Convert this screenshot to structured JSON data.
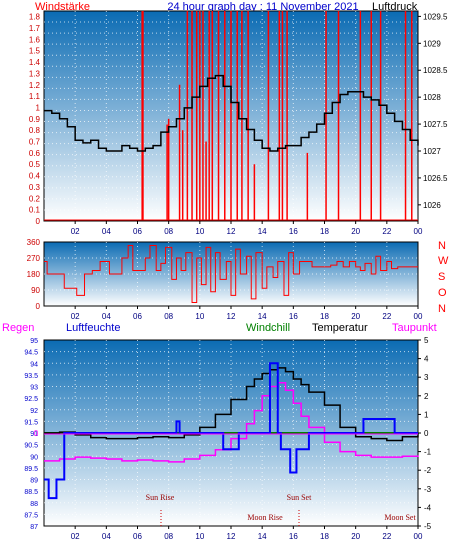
{
  "header": {
    "left_title": "Windstärke",
    "center_title": "24 hour graph day : 11 November 2021",
    "right_title": "Luftdruck"
  },
  "colors": {
    "wind": "#ff0000",
    "pressure": "#000000",
    "direction": "#ff0000",
    "humidity": "#0000ff",
    "windchill": "#008000",
    "temperature": "#000000",
    "dewpoint": "#ff00ff",
    "gradient_top": "#0b6bb3",
    "gradient_bottom": "#ffffff"
  },
  "direction_labels": [
    "N",
    "W",
    "S",
    "O",
    "N"
  ],
  "bottom_legend": {
    "rain": "Regen",
    "humidity": "Luftfeuchte",
    "windchill": "Windchill",
    "temperature": "Temperatur",
    "dewpoint": "Taupunkt"
  },
  "astro": {
    "sun_rise": "Sun Rise",
    "sun_set": "Sun Set",
    "moon_rise": "Moon Rise",
    "moon_set": "Moon Set"
  },
  "chart_data": [
    {
      "type": "line",
      "x_ticks": [
        "02",
        "04",
        "06",
        "08",
        "10",
        "12",
        "14",
        "16",
        "18",
        "20",
        "22",
        "00"
      ],
      "left_axis": {
        "label": "Windstärke",
        "ticks": [
          "0",
          "0.1",
          "0.2",
          "0.3",
          "0.4",
          "0.5",
          "0.6",
          "0.7",
          "0.8",
          "0.9",
          "1",
          "1.1",
          "1.2",
          "1.3",
          "1.4",
          "1.5",
          "1.6",
          "1.7",
          "1.8"
        ],
        "ylim": [
          0,
          1.85
        ]
      },
      "right_axis": {
        "label": "Luftdruck",
        "ticks": [
          "1026",
          "1026.5",
          "1027",
          "1027.5",
          "1028",
          "1028.5",
          "1029",
          "1029.5"
        ],
        "ylim": [
          1025.7,
          1029.6
        ]
      },
      "series": [
        {
          "name": "Luftdruck",
          "axis": "right",
          "x": [
            0,
            0.5,
            1,
            1.5,
            2,
            2.5,
            3,
            3.5,
            4,
            4.5,
            5,
            5.5,
            6,
            6.5,
            7,
            7.5,
            8,
            8.5,
            9,
            9.5,
            10,
            10.5,
            11,
            11.5,
            12,
            12.5,
            13,
            13.5,
            14,
            14.5,
            15,
            15.5,
            16,
            16.5,
            17,
            17.5,
            18,
            18.5,
            19,
            19.5,
            20,
            20.5,
            21,
            21.5,
            22,
            22.5,
            23,
            23.5,
            24
          ],
          "values": [
            1027.75,
            1027.7,
            1027.6,
            1027.45,
            1027.2,
            1027.15,
            1027.2,
            1027.05,
            1027.0,
            1027.0,
            1027.1,
            1027.05,
            1027.0,
            1027.05,
            1027.1,
            1027.35,
            1027.45,
            1027.6,
            1027.8,
            1028.0,
            1028.2,
            1028.35,
            1028.4,
            1028.2,
            1027.9,
            1027.6,
            1027.4,
            1027.2,
            1027.05,
            1027.0,
            1027.05,
            1027.1,
            1027.1,
            1027.25,
            1027.35,
            1027.5,
            1027.7,
            1027.9,
            1028.05,
            1028.1,
            1028.1,
            1028.0,
            1027.95,
            1027.85,
            1027.7,
            1027.55,
            1027.4,
            1027.2,
            1027.1
          ]
        },
        {
          "name": "Windstärke",
          "axis": "left",
          "x": [
            6.3,
            6.35,
            7.9,
            8.0,
            8.7,
            8.9,
            9.2,
            9.5,
            9.8,
            10.0,
            10.2,
            10.4,
            10.6,
            10.8,
            11.2,
            11.6,
            12.0,
            12.4,
            12.7,
            13.1,
            13.5,
            14.4,
            15.1,
            15.3,
            15.6,
            16.9,
            18.1,
            18.9,
            20.3,
            21.0,
            21.6,
            23.2,
            23.6
          ],
          "values": [
            1.85,
            1.85,
            0.85,
            0.9,
            1.2,
            0.8,
            1.85,
            1.85,
            1.85,
            1.85,
            1.85,
            0.7,
            1.85,
            1.85,
            1.85,
            1.85,
            1.85,
            1.85,
            1.85,
            1.85,
            0.5,
            1.85,
            1.85,
            1.85,
            1.85,
            0.6,
            1.85,
            1.85,
            1.85,
            1.85,
            1.85,
            1.85,
            1.85
          ]
        }
      ]
    },
    {
      "type": "line",
      "x_ticks": [
        "02",
        "04",
        "06",
        "08",
        "10",
        "12",
        "14",
        "16",
        "18",
        "20",
        "22",
        "00"
      ],
      "left_axis": {
        "ticks": [
          "0",
          "90",
          "180",
          "270",
          "360"
        ],
        "ylim": [
          0,
          360
        ]
      },
      "series": [
        {
          "name": "Windrichtung",
          "x": [
            0,
            0.2,
            0.8,
            1.3,
            1.6,
            2.1,
            2.6,
            3.1,
            3.6,
            4.2,
            4.6,
            5.0,
            5.4,
            5.7,
            6.1,
            6.5,
            6.8,
            7.2,
            7.5,
            7.8,
            8.2,
            8.5,
            8.8,
            9.1,
            9.5,
            9.8,
            10.1,
            10.4,
            10.7,
            11.0,
            11.3,
            11.7,
            12.0,
            12.3,
            12.6,
            13.0,
            13.3,
            13.6,
            14.0,
            14.3,
            14.7,
            15.0,
            15.4,
            15.7,
            16.0,
            16.4,
            16.8,
            17.2,
            17.6,
            18.0,
            18.4,
            18.8,
            19.2,
            19.6,
            20.0,
            20.3,
            20.6,
            21.0,
            21.3,
            21.6,
            22.0,
            22.3,
            22.7,
            23.0,
            23.5,
            24.0
          ],
          "values": [
            250,
            180,
            180,
            100,
            100,
            60,
            180,
            200,
            250,
            180,
            180,
            270,
            340,
            200,
            200,
            270,
            340,
            200,
            240,
            330,
            150,
            270,
            200,
            300,
            20,
            270,
            120,
            330,
            80,
            300,
            150,
            250,
            60,
            320,
            180,
            280,
            40,
            300,
            100,
            220,
            160,
            250,
            60,
            300,
            180,
            250,
            250,
            220,
            220,
            220,
            230,
            250,
            220,
            250,
            220,
            200,
            240,
            180,
            280,
            200,
            250,
            210,
            220,
            220,
            220,
            220
          ]
        }
      ]
    },
    {
      "type": "line",
      "x_ticks": [
        "02",
        "04",
        "06",
        "08",
        "10",
        "12",
        "14",
        "16",
        "18",
        "20",
        "22",
        "00"
      ],
      "left_axis": {
        "label": "Luftfeuchte",
        "ticks": [
          "87",
          "87.5",
          "88",
          "88.5",
          "89",
          "89.5",
          "90",
          "90.5",
          "91",
          "91.5",
          "92",
          "92.5",
          "93",
          "93.5",
          "94",
          "94.5",
          "95"
        ],
        "ylim": [
          87,
          95
        ]
      },
      "right_axis": {
        "label": "Temperatur",
        "ticks": [
          "-5",
          "-4",
          "-3",
          "-2",
          "-1",
          "0",
          "1",
          "2",
          "3",
          "4",
          "5"
        ],
        "ylim": [
          -5,
          5
        ]
      },
      "rain_value_label": "0",
      "series": [
        {
          "name": "Temperatur",
          "axis": "right",
          "x": [
            0,
            1,
            2,
            3,
            4,
            5,
            6,
            7,
            8,
            9,
            10,
            11,
            12,
            13,
            13.5,
            14,
            14.5,
            15,
            15.5,
            16,
            16.5,
            17,
            18,
            19,
            20,
            21,
            22,
            23,
            24
          ],
          "values": [
            0,
            0.05,
            -0.1,
            -0.25,
            -0.3,
            -0.3,
            -0.25,
            -0.2,
            -0.25,
            -0.1,
            0.3,
            1.0,
            1.8,
            2.5,
            2.9,
            3.2,
            3.4,
            3.5,
            3.3,
            2.9,
            2.6,
            2.2,
            1.5,
            0.3,
            -0.2,
            -0.3,
            -0.4,
            -0.2,
            0
          ]
        },
        {
          "name": "Taupunkt",
          "axis": "right",
          "x": [
            0,
            1,
            2,
            3,
            4,
            5,
            6,
            7,
            8,
            9,
            10,
            11,
            12,
            13,
            13.5,
            14,
            14.5,
            15,
            15.5,
            16,
            16.5,
            17,
            18,
            19,
            20,
            21,
            22,
            23,
            24
          ],
          "values": [
            -1.5,
            -1.4,
            -1.3,
            -1.35,
            -1.4,
            -1.5,
            -1.45,
            -1.5,
            -1.55,
            -1.4,
            -1.2,
            -0.9,
            -0.3,
            0.5,
            1.2,
            2.0,
            2.5,
            2.7,
            2.3,
            1.6,
            0.9,
            0.3,
            -0.5,
            -1.0,
            -1.2,
            -1.3,
            -1.3,
            -1.25,
            -1.2
          ]
        },
        {
          "name": "Windchill",
          "axis": "right",
          "x": [
            0,
            24
          ],
          "values": [
            0,
            0
          ]
        },
        {
          "name": "Luftfeuchte",
          "axis": "left",
          "x": [
            0,
            0.3,
            0.3,
            0.8,
            0.8,
            1.3,
            1.3,
            6.5,
            6.5,
            8.5,
            8.5,
            8.7,
            8.7,
            10.5,
            10.5,
            11.5,
            11.5,
            12.5,
            12.5,
            14.5,
            14.5,
            15.0,
            15.0,
            15.2,
            15.2,
            15.8,
            15.8,
            16.2,
            16.2,
            17.0,
            17.0,
            20.5,
            20.5,
            22.5,
            22.5,
            24
          ],
          "values": [
            89,
            89,
            88.2,
            88.2,
            89,
            89,
            91,
            91,
            91,
            91,
            91.5,
            91.5,
            91,
            91,
            91,
            91,
            90.3,
            90.3,
            91,
            91,
            94,
            94,
            91,
            91,
            90.3,
            90.3,
            89.3,
            89.3,
            90.3,
            90.3,
            91,
            91,
            91.6,
            91.6,
            91,
            91
          ]
        }
      ]
    }
  ]
}
